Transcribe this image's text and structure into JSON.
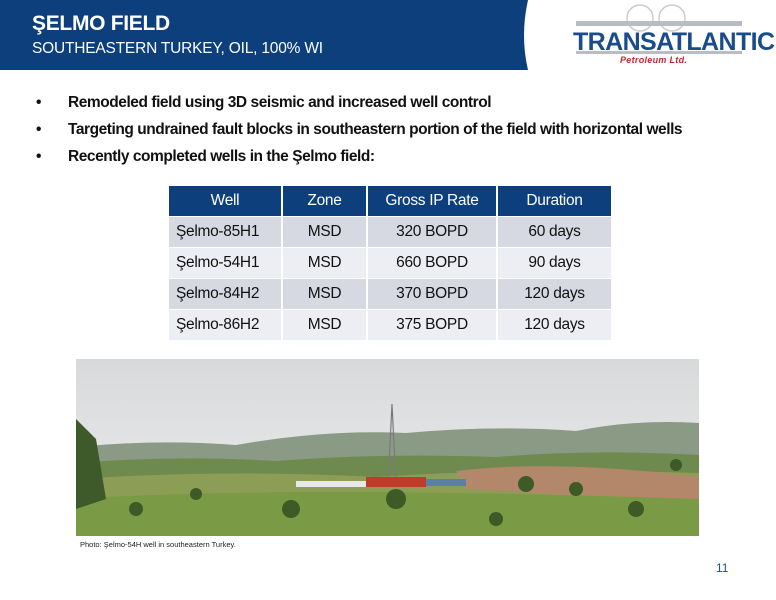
{
  "header": {
    "title": "ŞELMO FIELD",
    "subtitle": "SOUTHEASTERN TURKEY, OIL, 100% WI"
  },
  "logo": {
    "name": "TRANSATLANTIC",
    "tagline": "Petroleum Ltd."
  },
  "bullets": [
    "Remodeled field using 3D seismic and increased well control",
    "Targeting undrained fault blocks in southeastern portion of the field with horizontal wells",
    "Recently completed wells in the Şelmo field:"
  ],
  "table": {
    "columns": [
      "Well",
      "Zone",
      "Gross IP Rate",
      "Duration"
    ],
    "rows": [
      [
        "Şelmo-85H1",
        "MSD",
        "320 BOPD",
        "60 days"
      ],
      [
        "Şelmo-54H1",
        "MSD",
        "660 BOPD",
        "90 days"
      ],
      [
        "Şelmo-84H2",
        "MSD",
        "370 BOPD",
        "120 days"
      ],
      [
        "Şelmo-86H2",
        "MSD",
        "375 BOPD",
        "120 days"
      ]
    ]
  },
  "photo": {
    "caption": "Photo: Şelmo-54H well in southeastern Turkey."
  },
  "page_number": 11
}
